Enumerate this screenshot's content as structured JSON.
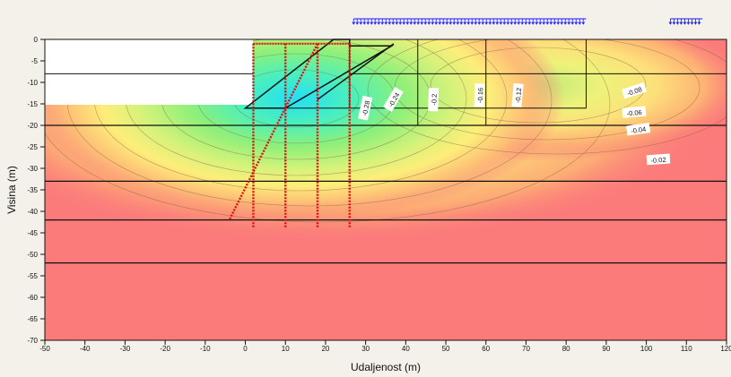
{
  "chart_data": {
    "type": "heatmap",
    "title": "",
    "xlabel": "Udaljenost (m)",
    "ylabel": "Visina (m)",
    "xlim": [
      -50,
      120
    ],
    "ylim": [
      -70,
      0
    ],
    "x_ticks": [
      -50,
      -40,
      -30,
      -20,
      -10,
      0,
      10,
      20,
      30,
      40,
      50,
      60,
      70,
      80,
      90,
      100,
      110,
      120
    ],
    "y_ticks": [
      0,
      -5,
      -10,
      -15,
      -20,
      -25,
      -30,
      -35,
      -40,
      -45,
      -50,
      -55,
      -60,
      -65,
      -70
    ],
    "grid": false,
    "contour_labels": [
      {
        "text": "-0.28",
        "x": 30,
        "y": -16,
        "rotate": -78
      },
      {
        "text": "-0.24",
        "x": 37,
        "y": -14,
        "rotate": -60
      },
      {
        "text": "-0.2",
        "x": 47,
        "y": -14,
        "rotate": -88
      },
      {
        "text": "-0.16",
        "x": 58.5,
        "y": -13,
        "rotate": -88
      },
      {
        "text": "-0.12",
        "x": 68,
        "y": -13,
        "rotate": -85
      },
      {
        "text": "-0.08",
        "x": 97,
        "y": -12,
        "rotate": -18
      },
      {
        "text": "-0.06",
        "x": 97,
        "y": -17,
        "rotate": -5
      },
      {
        "text": "-0.04",
        "x": 98,
        "y": -21,
        "rotate": -8
      },
      {
        "text": "-0.02",
        "x": 103,
        "y": -28,
        "rotate": -4
      }
    ],
    "layer_boundaries_y": [
      -8,
      -20,
      -33,
      -42,
      -52
    ],
    "pile_rows_x": [
      2,
      10,
      18,
      26
    ],
    "pile_tip_y": -44,
    "loads": [
      {
        "x_start": 27,
        "x_end": 85
      },
      {
        "x_start": 106,
        "x_end": 114
      }
    ],
    "colors": {
      "background": "#f3f1ea",
      "low": "#fb7b7b",
      "mid": "#fdf07a",
      "high": "#2fe8f2",
      "line": "#111111",
      "pile": "#e01010",
      "load": "#1a1aff"
    }
  }
}
